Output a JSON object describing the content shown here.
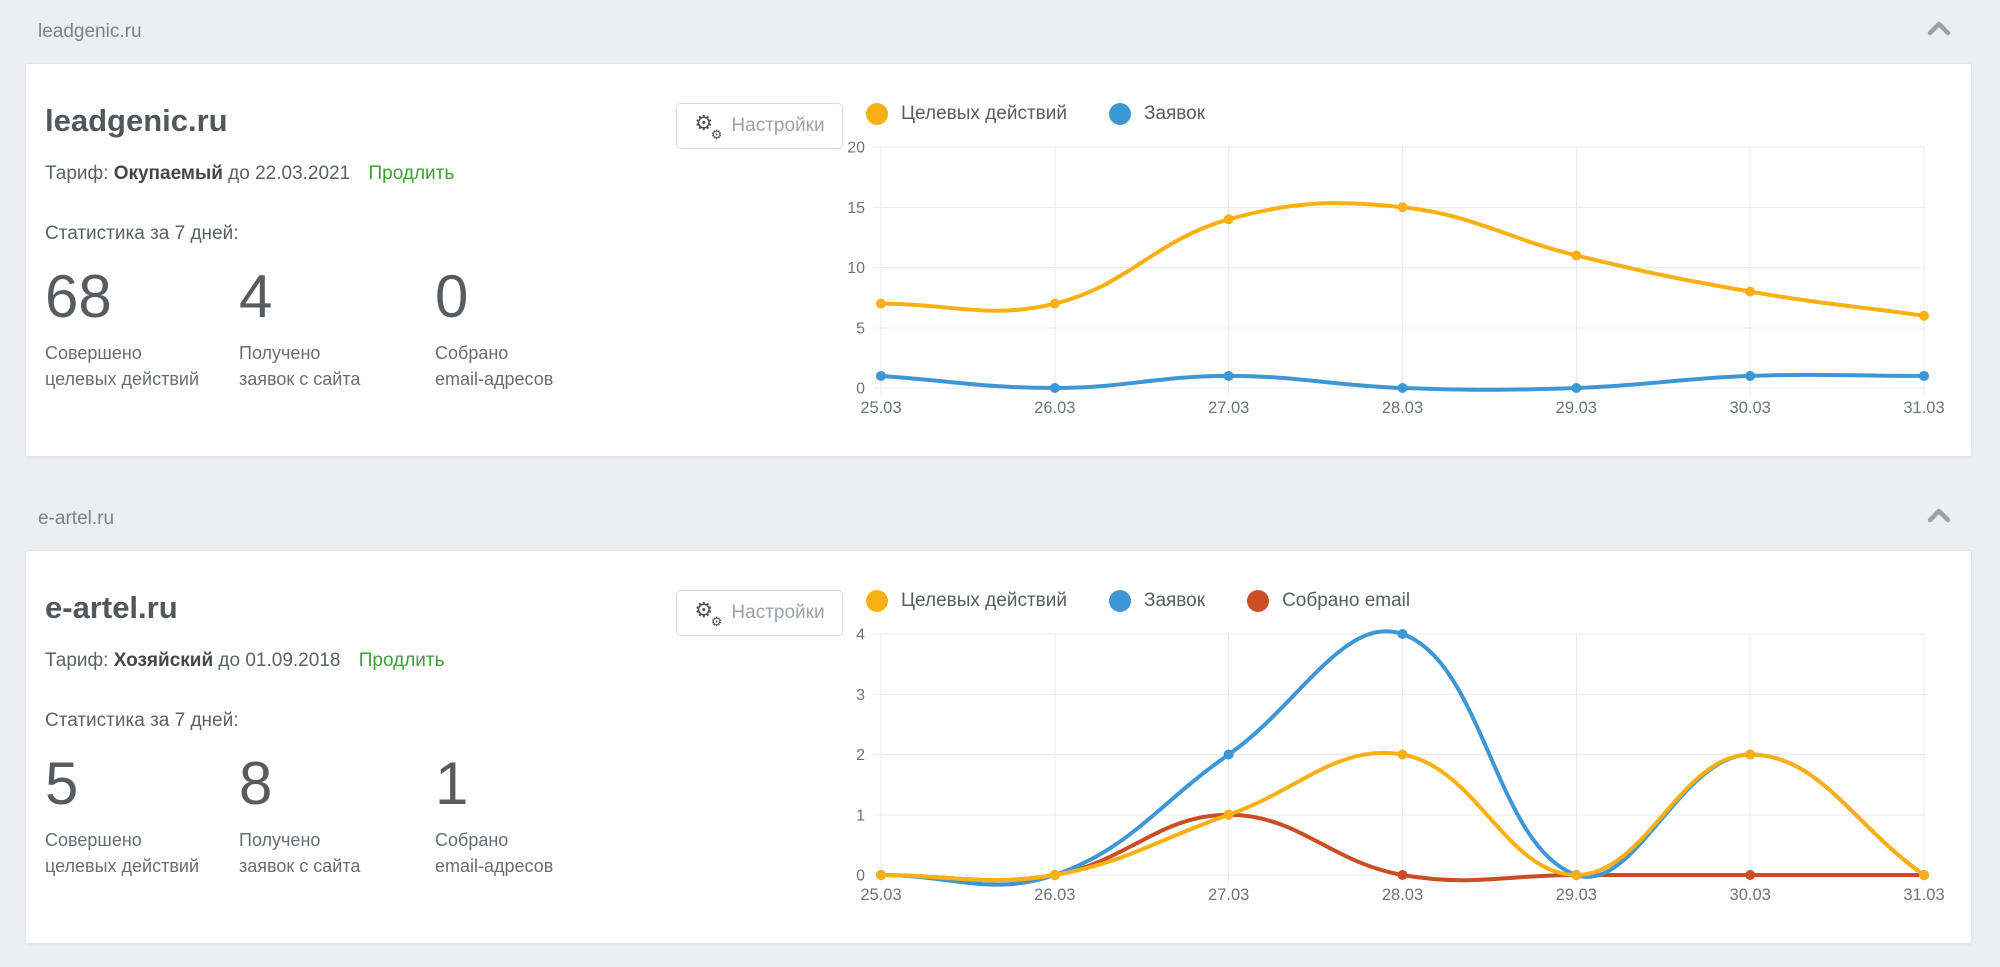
{
  "page": {
    "background": "#ebeef2"
  },
  "panels": [
    {
      "group_title": "leadgenic.ru",
      "title": "leadgenic.ru",
      "tariff": {
        "label": "Тариф:",
        "name": "Окупаемый",
        "until": "до 22.03.2021",
        "renew_link": "Продлить"
      },
      "stats_title": "Статистика за 7 дней:",
      "stats": [
        {
          "value": "68",
          "label_line1": "Совершено",
          "label_line2": "целевых действий"
        },
        {
          "value": "4",
          "label_line1": "Получено",
          "label_line2": "заявок с сайта"
        },
        {
          "value": "0",
          "label_line1": "Собрано",
          "label_line2": "email-адресов"
        }
      ],
      "settings_button": "Настройки"
    },
    {
      "group_title": "e-artel.ru",
      "title": "e-artel.ru",
      "tariff": {
        "label": "Тариф:",
        "name": "Хозяйский",
        "until": "до 01.09.2018",
        "renew_link": "Продлить"
      },
      "stats_title": "Статистика за 7 дней:",
      "stats": [
        {
          "value": "5",
          "label_line1": "Совершено",
          "label_line2": "целевых действий"
        },
        {
          "value": "8",
          "label_line1": "Получено",
          "label_line2": "заявок с сайта"
        },
        {
          "value": "1",
          "label_line1": "Собрано",
          "label_line2": "email-адресов"
        }
      ],
      "settings_button": "Настройки"
    }
  ],
  "chart_data": [
    {
      "type": "line",
      "categories": [
        "25.03",
        "26.03",
        "27.03",
        "28.03",
        "29.03",
        "30.03",
        "31.03"
      ],
      "series": [
        {
          "name": "Целевых действий",
          "color": "#f9b013",
          "values": [
            7,
            7,
            14,
            15,
            11,
            8,
            6
          ]
        },
        {
          "name": "Заявок",
          "color": "#3d97d4",
          "values": [
            1,
            0,
            1,
            0,
            0,
            1,
            1
          ]
        }
      ],
      "ylim": [
        0,
        20
      ],
      "yticks": [
        0,
        5,
        10,
        15,
        20
      ],
      "grid": true,
      "legend_position": "top",
      "smooth": true
    },
    {
      "type": "line",
      "categories": [
        "25.03",
        "26.03",
        "27.03",
        "28.03",
        "29.03",
        "30.03",
        "31.03"
      ],
      "series": [
        {
          "name": "Целевых действий",
          "color": "#f9b013",
          "values": [
            0,
            0,
            1,
            2,
            0,
            2,
            0
          ]
        },
        {
          "name": "Заявок",
          "color": "#3d97d4",
          "values": [
            0,
            0,
            2,
            4,
            0,
            2,
            0
          ]
        },
        {
          "name": "Собрано email",
          "color": "#cb4d24",
          "values": [
            0,
            0,
            1,
            0,
            0,
            0,
            0
          ]
        }
      ],
      "ylim": [
        0,
        4
      ],
      "yticks": [
        0,
        1,
        2,
        3,
        4
      ],
      "grid": true,
      "legend_position": "top",
      "smooth": true
    }
  ],
  "colors": {
    "accent_green": "#3f9e36",
    "series_yellow": "#f9b013",
    "series_blue": "#3d97d4",
    "series_red": "#cb4d24",
    "grid": "#e9ebed"
  }
}
